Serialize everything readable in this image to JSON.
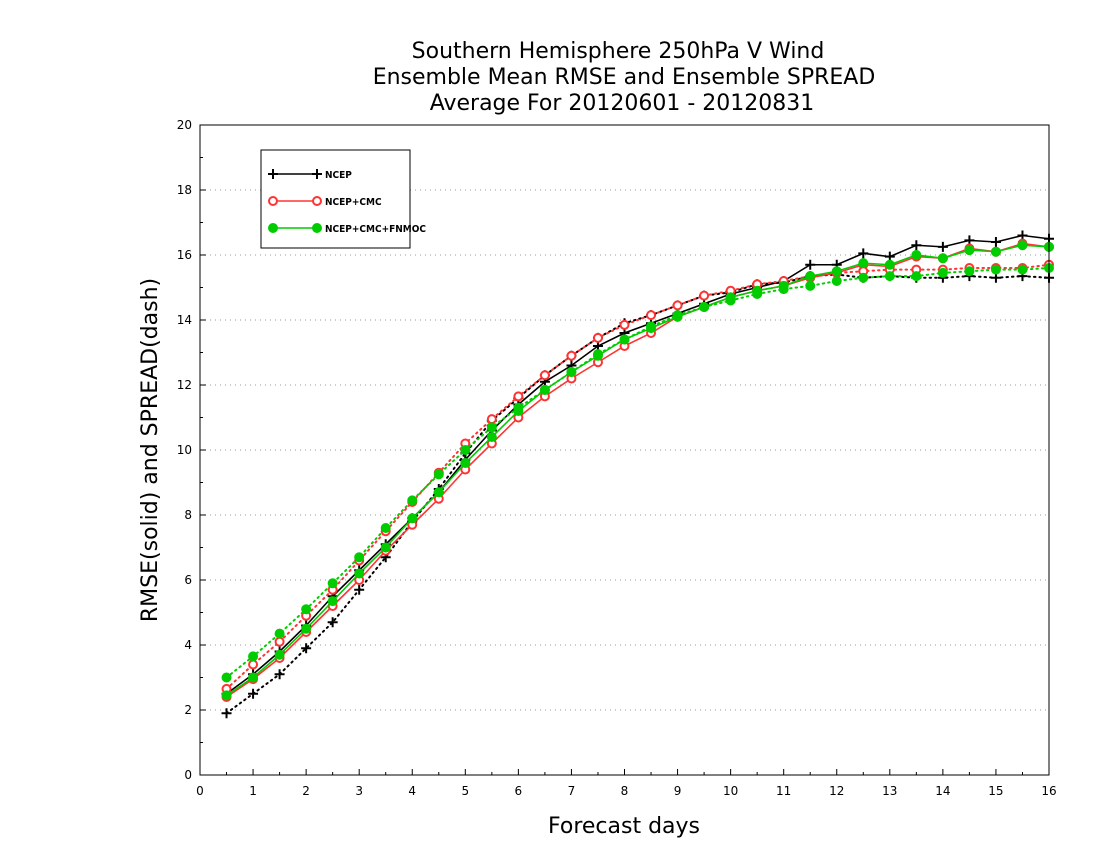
{
  "chart_data": {
    "type": "line",
    "title": [
      "Southern Hemisphere 250hPa V Wind",
      "Ensemble Mean RMSE and Ensemble SPREAD",
      "Average For 20120601 - 20120831"
    ],
    "xlabel": "Forecast days",
    "ylabel": "RMSE(solid) and SPREAD(dash)",
    "xlim": [
      0,
      16
    ],
    "ylim": [
      0,
      20
    ],
    "xticks": [
      0,
      1,
      2,
      3,
      4,
      5,
      6,
      7,
      8,
      9,
      10,
      11,
      12,
      13,
      14,
      15,
      16
    ],
    "yticks": [
      0,
      2,
      4,
      6,
      8,
      10,
      12,
      14,
      16,
      18,
      20
    ],
    "grid": "horizontal dotted",
    "legend_position": "top-left",
    "x": [
      0.5,
      1,
      1.5,
      2,
      2.5,
      3,
      3.5,
      4,
      4.5,
      5,
      5.5,
      6,
      6.5,
      7,
      7.5,
      8,
      8.5,
      9,
      9.5,
      10,
      10.5,
      11,
      11.5,
      12,
      12.5,
      13,
      13.5,
      14,
      14.5,
      15,
      15.5,
      16
    ],
    "series": [
      {
        "name": "NCEP",
        "kind": "rmse",
        "style": "solid",
        "color": "#000000",
        "marker": "plus",
        "values": [
          2.5,
          3.1,
          3.8,
          4.6,
          5.5,
          6.3,
          7.1,
          7.9,
          8.7,
          9.7,
          10.6,
          11.4,
          12.1,
          12.6,
          13.2,
          13.6,
          13.9,
          14.2,
          14.5,
          14.8,
          15.0,
          15.2,
          15.7,
          15.7,
          16.05,
          15.95,
          16.3,
          16.25,
          16.45,
          16.4,
          16.6,
          16.5
        ]
      },
      {
        "name": "NCEP",
        "kind": "spread",
        "style": "dotted",
        "color": "#000000",
        "marker": "plus",
        "values": [
          1.9,
          2.5,
          3.1,
          3.9,
          4.7,
          5.7,
          6.7,
          7.8,
          8.8,
          9.9,
          10.9,
          11.6,
          12.3,
          12.9,
          13.45,
          13.9,
          14.15,
          14.45,
          14.75,
          14.85,
          15.1,
          15.15,
          15.35,
          15.4,
          15.3,
          15.35,
          15.3,
          15.3,
          15.35,
          15.3,
          15.35,
          15.3
        ]
      },
      {
        "name": "NCEP+CMC",
        "kind": "rmse",
        "style": "solid",
        "color": "#ff3333",
        "marker": "open-circle",
        "values": [
          2.4,
          2.95,
          3.6,
          4.4,
          5.2,
          6.0,
          6.9,
          7.7,
          8.5,
          9.4,
          10.2,
          11.0,
          11.65,
          12.2,
          12.7,
          13.2,
          13.6,
          14.1,
          14.4,
          14.7,
          14.9,
          15.05,
          15.3,
          15.45,
          15.7,
          15.65,
          15.95,
          15.9,
          16.2,
          16.1,
          16.35,
          16.25
        ]
      },
      {
        "name": "NCEP+CMC",
        "kind": "spread",
        "style": "dotted",
        "color": "#ff3333",
        "marker": "open-circle",
        "values": [
          2.65,
          3.4,
          4.1,
          4.9,
          5.7,
          6.6,
          7.5,
          8.4,
          9.3,
          10.2,
          10.95,
          11.65,
          12.3,
          12.9,
          13.45,
          13.85,
          14.15,
          14.45,
          14.75,
          14.9,
          15.1,
          15.2,
          15.35,
          15.45,
          15.5,
          15.55,
          15.55,
          15.55,
          15.6,
          15.6,
          15.6,
          15.7
        ]
      },
      {
        "name": "NCEP+CMC+FNMOC",
        "kind": "rmse",
        "style": "solid",
        "color": "#00cc00",
        "marker": "filled-circle",
        "values": [
          2.45,
          3.0,
          3.7,
          4.5,
          5.35,
          6.2,
          7.0,
          7.9,
          8.7,
          9.6,
          10.4,
          11.2,
          11.85,
          12.4,
          12.9,
          13.4,
          13.75,
          14.1,
          14.4,
          14.7,
          14.9,
          15.05,
          15.35,
          15.5,
          15.75,
          15.7,
          16.0,
          15.9,
          16.15,
          16.1,
          16.3,
          16.25
        ]
      },
      {
        "name": "NCEP+CMC+FNMOC",
        "kind": "spread",
        "style": "dotted",
        "color": "#00cc00",
        "marker": "filled-circle",
        "values": [
          3.0,
          3.65,
          4.35,
          5.1,
          5.9,
          6.7,
          7.6,
          8.45,
          9.25,
          10.0,
          10.7,
          11.3,
          11.85,
          12.4,
          12.95,
          13.4,
          13.8,
          14.15,
          14.4,
          14.6,
          14.8,
          14.95,
          15.05,
          15.2,
          15.3,
          15.35,
          15.35,
          15.45,
          15.5,
          15.55,
          15.55,
          15.6
        ]
      }
    ]
  }
}
